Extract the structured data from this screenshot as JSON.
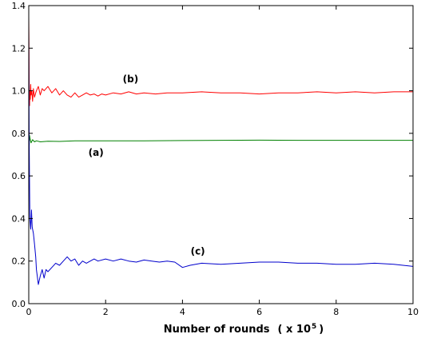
{
  "chart_data": {
    "type": "line",
    "title": "",
    "xlabel": "Number of rounds",
    "xlabel_unit": "( x 10",
    "xlabel_exponent": "5",
    "xlabel_close": ")",
    "ylabel": "",
    "xlim": [
      0,
      10
    ],
    "ylim": [
      0.0,
      1.4
    ],
    "grid": false,
    "legend": "none",
    "x_ticks": [
      0,
      2,
      4,
      6,
      8,
      10
    ],
    "x_tick_labels": [
      "0",
      "2",
      "4",
      "6",
      "8",
      "10"
    ],
    "y_ticks": [
      0.0,
      0.2,
      0.4,
      0.6,
      0.8,
      1.0,
      1.2,
      1.4
    ],
    "y_tick_labels": [
      "0.0",
      "0.2",
      "0.4",
      "0.6",
      "0.8",
      "1.0",
      "1.2",
      "1.4"
    ],
    "annotations": [
      {
        "text": "(a)",
        "x": 1.75,
        "y": 0.695
      },
      {
        "text": "(b)",
        "x": 2.65,
        "y": 1.04
      },
      {
        "text": "(c)",
        "x": 4.4,
        "y": 0.23
      }
    ],
    "series": [
      {
        "color": "#008000",
        "x": [
          0,
          0.01,
          0.02,
          0.04,
          0.06,
          0.1,
          0.15,
          0.2,
          0.3,
          0.5,
          0.8,
          1.2,
          2,
          3,
          4,
          5,
          6,
          7,
          8,
          9,
          10
        ],
        "y": [
          0.6,
          0.74,
          0.79,
          0.77,
          0.755,
          0.77,
          0.76,
          0.765,
          0.76,
          0.763,
          0.762,
          0.765,
          0.765,
          0.765,
          0.766,
          0.767,
          0.768,
          0.767,
          0.767,
          0.767,
          0.767
        ]
      },
      {
        "color": "#ff0000",
        "x": [
          0,
          0.005,
          0.01,
          0.02,
          0.03,
          0.04,
          0.05,
          0.06,
          0.08,
          0.1,
          0.12,
          0.15,
          0.18,
          0.2,
          0.25,
          0.3,
          0.35,
          0.4,
          0.5,
          0.6,
          0.7,
          0.8,
          0.9,
          1.0,
          1.1,
          1.2,
          1.3,
          1.4,
          1.5,
          1.6,
          1.7,
          1.8,
          1.9,
          2.0,
          2.2,
          2.4,
          2.6,
          2.8,
          3.0,
          3.3,
          3.6,
          4.0,
          4.5,
          5.0,
          5.5,
          6.0,
          6.5,
          7.0,
          7.5,
          8.0,
          8.5,
          9.0,
          9.5,
          10.0
        ],
        "y": [
          1.35,
          1.25,
          1.05,
          0.93,
          1.0,
          0.96,
          1.03,
          0.98,
          1.0,
          0.95,
          1.01,
          0.97,
          0.99,
          1.0,
          1.02,
          0.98,
          1.01,
          1.0,
          1.02,
          0.99,
          1.01,
          0.98,
          1.0,
          0.98,
          0.97,
          0.99,
          0.97,
          0.98,
          0.99,
          0.98,
          0.985,
          0.975,
          0.985,
          0.98,
          0.99,
          0.985,
          0.995,
          0.985,
          0.99,
          0.985,
          0.99,
          0.99,
          0.995,
          0.99,
          0.99,
          0.985,
          0.99,
          0.99,
          0.995,
          0.99,
          0.995,
          0.99,
          0.995,
          0.995
        ]
      },
      {
        "color": "#0000cc",
        "x": [
          0,
          0.01,
          0.02,
          0.03,
          0.05,
          0.07,
          0.09,
          0.12,
          0.15,
          0.18,
          0.2,
          0.25,
          0.3,
          0.35,
          0.4,
          0.45,
          0.5,
          0.6,
          0.7,
          0.8,
          0.9,
          1.0,
          1.1,
          1.2,
          1.3,
          1.4,
          1.5,
          1.6,
          1.7,
          1.8,
          2.0,
          2.2,
          2.4,
          2.6,
          2.8,
          3.0,
          3.2,
          3.4,
          3.6,
          3.8,
          4.0,
          4.2,
          4.5,
          5.0,
          5.5,
          6.0,
          6.5,
          7.0,
          7.5,
          8.0,
          8.5,
          9.0,
          9.5,
          10.0
        ],
        "y": [
          1.3,
          0.78,
          0.55,
          0.4,
          0.35,
          0.44,
          0.36,
          0.33,
          0.28,
          0.22,
          0.16,
          0.09,
          0.13,
          0.16,
          0.12,
          0.16,
          0.15,
          0.17,
          0.19,
          0.18,
          0.2,
          0.22,
          0.2,
          0.21,
          0.18,
          0.2,
          0.19,
          0.2,
          0.21,
          0.2,
          0.21,
          0.2,
          0.21,
          0.2,
          0.195,
          0.205,
          0.2,
          0.195,
          0.2,
          0.195,
          0.17,
          0.18,
          0.19,
          0.185,
          0.19,
          0.195,
          0.195,
          0.19,
          0.19,
          0.185,
          0.185,
          0.19,
          0.185,
          0.175
        ]
      }
    ]
  }
}
